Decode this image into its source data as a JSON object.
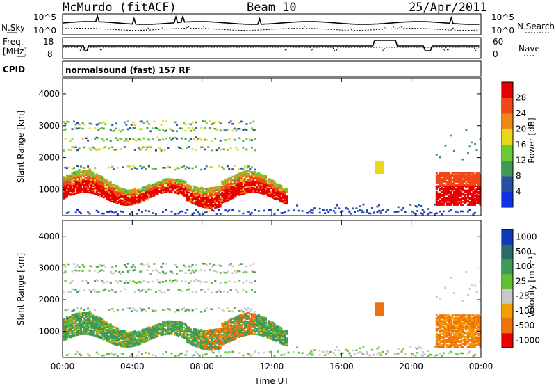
{
  "header": {
    "station": "McMurdo (fitACF)",
    "beam": "Beam 10",
    "date": "25/Apr/2011"
  },
  "panels": {
    "sky_label": "N.Sky",
    "search_label": "N.Search",
    "sky_top": "10^5",
    "sky_bot": "10^0",
    "search_top": "10^5",
    "search_bot": "10^0",
    "freq_label_1": "Freq.",
    "freq_label_2": "[MHz]",
    "freq_top": "18",
    "freq_bot": "8",
    "nave_label": "Nave",
    "nave_top": "60",
    "nave_bot": "0",
    "cpid_label": "CPID",
    "cpid_text": "normalsound (fast) 157 RF"
  },
  "chart_data": [
    {
      "type": "heatmap",
      "title": "Power",
      "ylabel": "Slant Range [km]",
      "colorbar_label": "Power [dB]",
      "ylim": [
        180,
        4500
      ],
      "yticks": [
        "1000",
        "2000",
        "3000",
        "4000"
      ],
      "colorbar_ticks": [
        "4",
        "8",
        "12",
        "16",
        "20",
        "24",
        "28"
      ],
      "colors": [
        "#1030e8",
        "#2a4ea0",
        "#3f9a5a",
        "#6acc30",
        "#e8d818",
        "#f08818",
        "#f04818",
        "#e80000"
      ]
    },
    {
      "type": "heatmap",
      "title": "Velocity",
      "ylabel": "Slant Range [km]",
      "xlabel": "Time UT",
      "colorbar_label": "Velocity [m s⁻¹]",
      "ylim": [
        180,
        4500
      ],
      "yticks": [
        "1000",
        "2000",
        "3000",
        "4000"
      ],
      "colorbar_ticks": [
        "1000",
        "500",
        "100",
        "25",
        "-25",
        "-100",
        "-500",
        "-1000"
      ],
      "colors": [
        "#1038b8",
        "#2a6a6a",
        "#3f9a5a",
        "#60c030",
        "#c8c8c8",
        "#f0a000",
        "#f07010",
        "#e80000"
      ]
    }
  ],
  "x_axis": {
    "label": "Time UT",
    "ticks": [
      "00:00",
      "04:00",
      "08:00",
      "12:00",
      "16:00",
      "20:00",
      "00:00"
    ],
    "range_hours": [
      0,
      24
    ]
  }
}
